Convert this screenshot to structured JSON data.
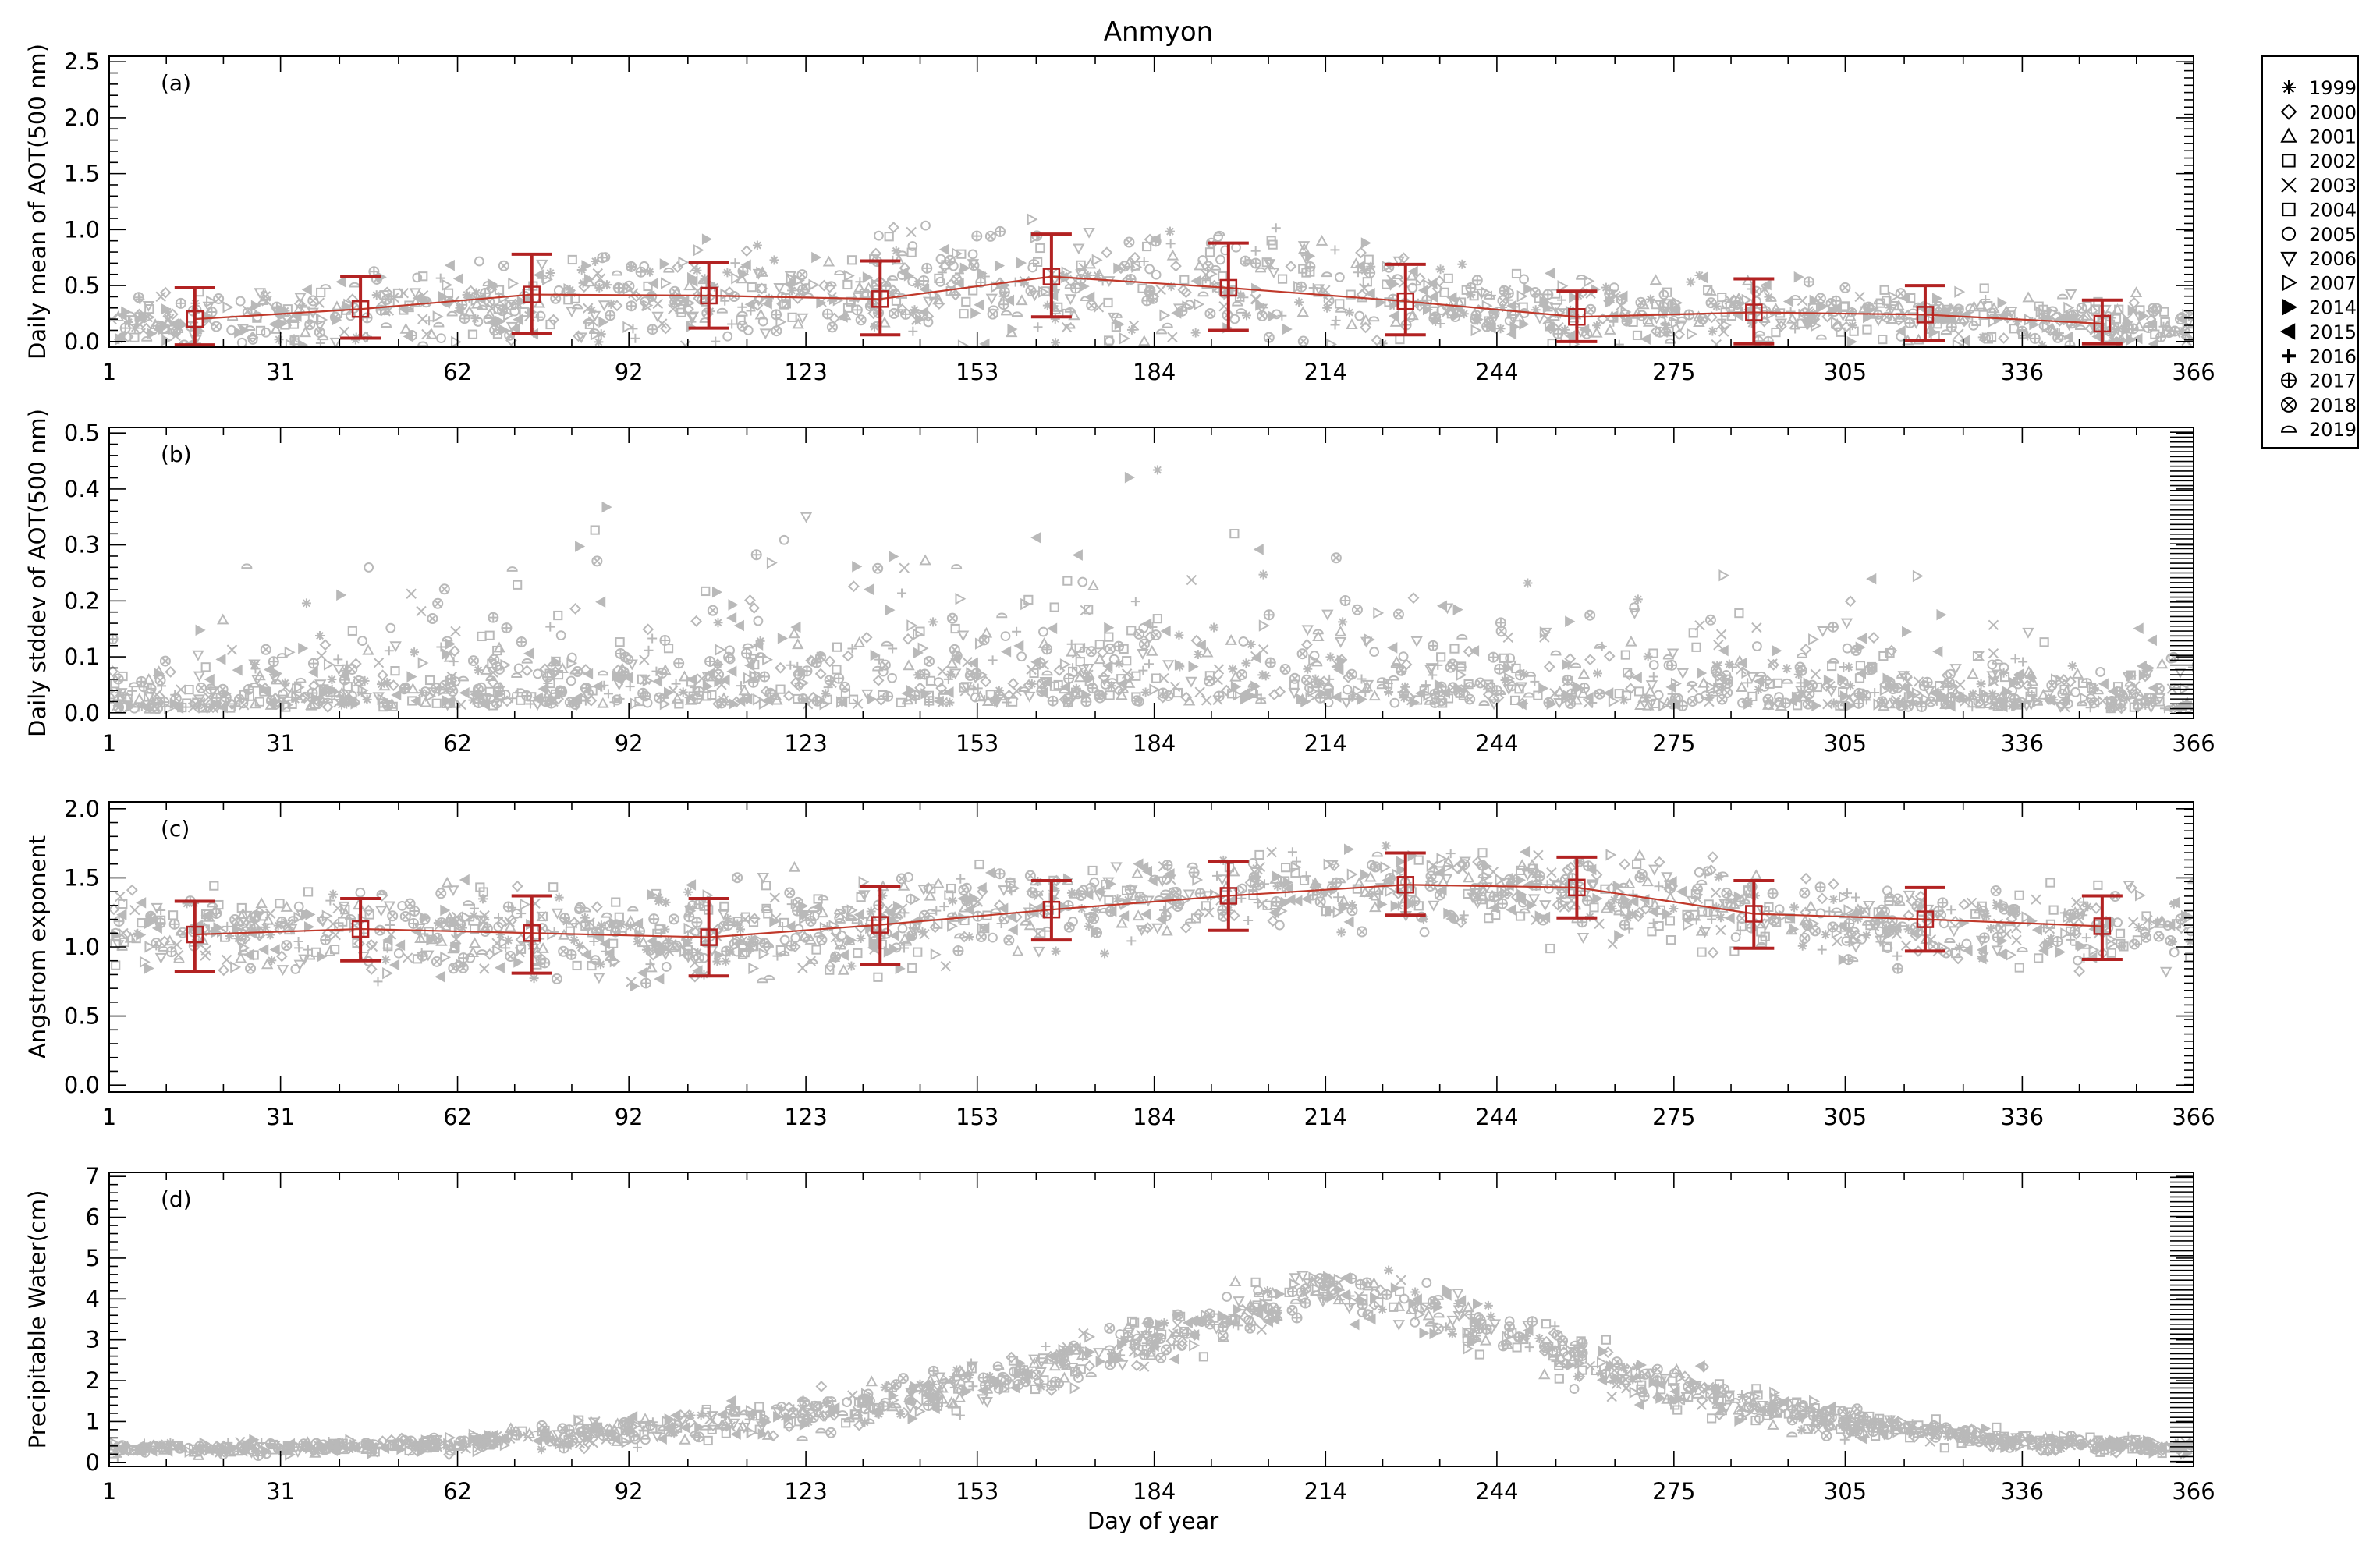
{
  "figure_title": "Anmyon",
  "x_axis_label": "Day of year",
  "legend": {
    "entries": [
      {
        "label": "1999",
        "symbol": "asterisk"
      },
      {
        "label": "2000",
        "symbol": "diamond"
      },
      {
        "label": "2001",
        "symbol": "triangle"
      },
      {
        "label": "2002",
        "symbol": "square"
      },
      {
        "label": "2003",
        "symbol": "cross"
      },
      {
        "label": "2004",
        "symbol": "square"
      },
      {
        "label": "2005",
        "symbol": "circle"
      },
      {
        "label": "2006",
        "symbol": "triangle-down"
      },
      {
        "label": "2007",
        "symbol": "triangle-right"
      },
      {
        "label": "2014",
        "symbol": "triangle-right-filled"
      },
      {
        "label": "2015",
        "symbol": "triangle-left-filled"
      },
      {
        "label": "2016",
        "symbol": "plus-bold"
      },
      {
        "label": "2017",
        "symbol": "circle-plus"
      },
      {
        "label": "2018",
        "symbol": "circle-x"
      },
      {
        "label": "2019",
        "symbol": "half-ellipse"
      }
    ]
  },
  "colors": {
    "scatter": "#b9b9b9",
    "mean_line": "#c0392b",
    "error_bar": "#b22222",
    "axis": "#000000"
  },
  "chart_data": [
    {
      "type": "scatter",
      "panel_tag": "(a)",
      "ylabel": "Daily mean of AOT(500 nm)",
      "xlabel": "",
      "xlim": [
        1,
        366
      ],
      "ylim": [
        -0.05,
        2.55
      ],
      "x_ticks": [
        1,
        31,
        62,
        92,
        123,
        153,
        184,
        214,
        244,
        275,
        305,
        336,
        366
      ],
      "y_ticks": [
        0.0,
        0.5,
        1.0,
        1.5,
        2.0,
        2.5
      ],
      "y_tick_labels": [
        "0.0",
        "0.5",
        "1.0",
        "1.5",
        "2.0",
        "2.5"
      ],
      "x_tick_labels": [
        "1",
        "31",
        "62",
        "92",
        "123",
        "153",
        "184",
        "214",
        "244",
        "275",
        "305",
        "336",
        "366"
      ],
      "monthly_mean": {
        "x": [
          16,
          45,
          75,
          106,
          136,
          166,
          197,
          228,
          258,
          289,
          319,
          350
        ],
        "mean": [
          0.2,
          0.29,
          0.42,
          0.41,
          0.38,
          0.58,
          0.48,
          0.36,
          0.22,
          0.26,
          0.24,
          0.16
        ],
        "low": [
          -0.03,
          0.03,
          0.07,
          0.12,
          0.06,
          0.22,
          0.1,
          0.06,
          0.0,
          -0.02,
          0.01,
          -0.02
        ],
        "high": [
          0.48,
          0.58,
          0.78,
          0.71,
          0.72,
          0.96,
          0.88,
          0.69,
          0.45,
          0.56,
          0.5,
          0.37
        ]
      },
      "scatter_cloud": {
        "anchors_x": [
          1,
          31,
          62,
          92,
          123,
          153,
          184,
          214,
          244,
          275,
          305,
          336,
          366
        ],
        "center": [
          0.15,
          0.22,
          0.32,
          0.42,
          0.4,
          0.5,
          0.5,
          0.45,
          0.3,
          0.25,
          0.24,
          0.18,
          0.15
        ],
        "spread": [
          0.2,
          0.28,
          0.36,
          0.36,
          0.36,
          0.52,
          0.5,
          0.48,
          0.28,
          0.3,
          0.26,
          0.2,
          0.2
        ],
        "count": 1400,
        "seed": 11
      }
    },
    {
      "type": "scatter",
      "panel_tag": "(b)",
      "ylabel": "Daily stddev of AOT(500 nm)",
      "xlabel": "",
      "xlim": [
        1,
        366
      ],
      "ylim": [
        -0.01,
        0.51
      ],
      "x_ticks": [
        1,
        31,
        62,
        92,
        123,
        153,
        184,
        214,
        244,
        275,
        305,
        336,
        366
      ],
      "y_ticks": [
        0.0,
        0.1,
        0.2,
        0.3,
        0.4,
        0.5
      ],
      "y_tick_labels": [
        "0.0",
        "0.1",
        "0.2",
        "0.3",
        "0.4",
        "0.5"
      ],
      "x_tick_labels": [
        "1",
        "31",
        "62",
        "92",
        "123",
        "153",
        "184",
        "214",
        "244",
        "275",
        "305",
        "336",
        "366"
      ],
      "scatter_cloud": {
        "anchors_x": [
          1,
          31,
          62,
          92,
          123,
          153,
          184,
          214,
          244,
          275,
          305,
          336,
          366
        ],
        "center": [
          0.02,
          0.03,
          0.04,
          0.05,
          0.05,
          0.06,
          0.06,
          0.06,
          0.05,
          0.04,
          0.04,
          0.03,
          0.02
        ],
        "spread": [
          0.06,
          0.08,
          0.1,
          0.12,
          0.11,
          0.12,
          0.12,
          0.12,
          0.1,
          0.09,
          0.09,
          0.07,
          0.06
        ],
        "count": 1500,
        "seed": 23,
        "skewed": true
      }
    },
    {
      "type": "scatter",
      "panel_tag": "(c)",
      "ylabel": "Angstrom exponent",
      "xlabel": "",
      "xlim": [
        1,
        366
      ],
      "ylim": [
        -0.05,
        2.05
      ],
      "x_ticks": [
        1,
        31,
        62,
        92,
        123,
        153,
        184,
        214,
        244,
        275,
        305,
        336,
        366
      ],
      "y_ticks": [
        0.0,
        0.5,
        1.0,
        1.5,
        2.0
      ],
      "y_tick_labels": [
        "0.0",
        "0.5",
        "1.0",
        "1.5",
        "2.0"
      ],
      "x_tick_labels": [
        "1",
        "31",
        "62",
        "92",
        "123",
        "153",
        "184",
        "214",
        "244",
        "275",
        "305",
        "336",
        "366"
      ],
      "monthly_mean": {
        "x": [
          16,
          45,
          75,
          106,
          136,
          166,
          197,
          228,
          258,
          289,
          319,
          350
        ],
        "mean": [
          1.09,
          1.13,
          1.1,
          1.07,
          1.16,
          1.27,
          1.37,
          1.45,
          1.43,
          1.24,
          1.2,
          1.15
        ],
        "low": [
          0.82,
          0.9,
          0.81,
          0.79,
          0.87,
          1.05,
          1.12,
          1.23,
          1.21,
          0.99,
          0.97,
          0.91
        ],
        "high": [
          1.33,
          1.35,
          1.37,
          1.35,
          1.44,
          1.48,
          1.62,
          1.68,
          1.65,
          1.48,
          1.43,
          1.37
        ]
      },
      "scatter_cloud": {
        "anchors_x": [
          1,
          31,
          62,
          92,
          123,
          153,
          184,
          214,
          244,
          275,
          305,
          336,
          366
        ],
        "center": [
          1.1,
          1.1,
          1.1,
          1.05,
          1.12,
          1.25,
          1.35,
          1.45,
          1.45,
          1.3,
          1.2,
          1.15,
          1.15
        ],
        "spread": [
          0.3,
          0.3,
          0.32,
          0.32,
          0.34,
          0.3,
          0.28,
          0.26,
          0.26,
          0.28,
          0.28,
          0.28,
          0.3
        ],
        "count": 1500,
        "seed": 37
      }
    },
    {
      "type": "scatter",
      "panel_tag": "(d)",
      "ylabel": "Precipitable Water(cm)",
      "xlabel": "Day of year",
      "xlim": [
        1,
        366
      ],
      "ylim": [
        -0.1,
        7.1
      ],
      "x_ticks": [
        1,
        31,
        62,
        92,
        123,
        153,
        184,
        214,
        244,
        275,
        305,
        336,
        366
      ],
      "y_ticks": [
        0,
        1,
        2,
        3,
        4,
        5,
        6,
        7
      ],
      "y_tick_labels": [
        "0",
        "1",
        "2",
        "3",
        "4",
        "5",
        "6",
        "7"
      ],
      "x_tick_labels": [
        "1",
        "31",
        "62",
        "92",
        "123",
        "153",
        "184",
        "214",
        "244",
        "275",
        "305",
        "336",
        "366"
      ],
      "scatter_cloud": {
        "anchors_x": [
          1,
          31,
          62,
          92,
          123,
          153,
          184,
          214,
          244,
          275,
          305,
          336,
          366
        ],
        "center": [
          0.35,
          0.35,
          0.45,
          0.8,
          1.2,
          1.9,
          3.0,
          4.3,
          3.2,
          1.8,
          1.0,
          0.5,
          0.35
        ],
        "spread": [
          0.15,
          0.15,
          0.2,
          0.4,
          0.55,
          0.6,
          0.65,
          0.6,
          0.65,
          0.55,
          0.4,
          0.2,
          0.15
        ],
        "count": 1500,
        "seed": 53
      }
    }
  ]
}
